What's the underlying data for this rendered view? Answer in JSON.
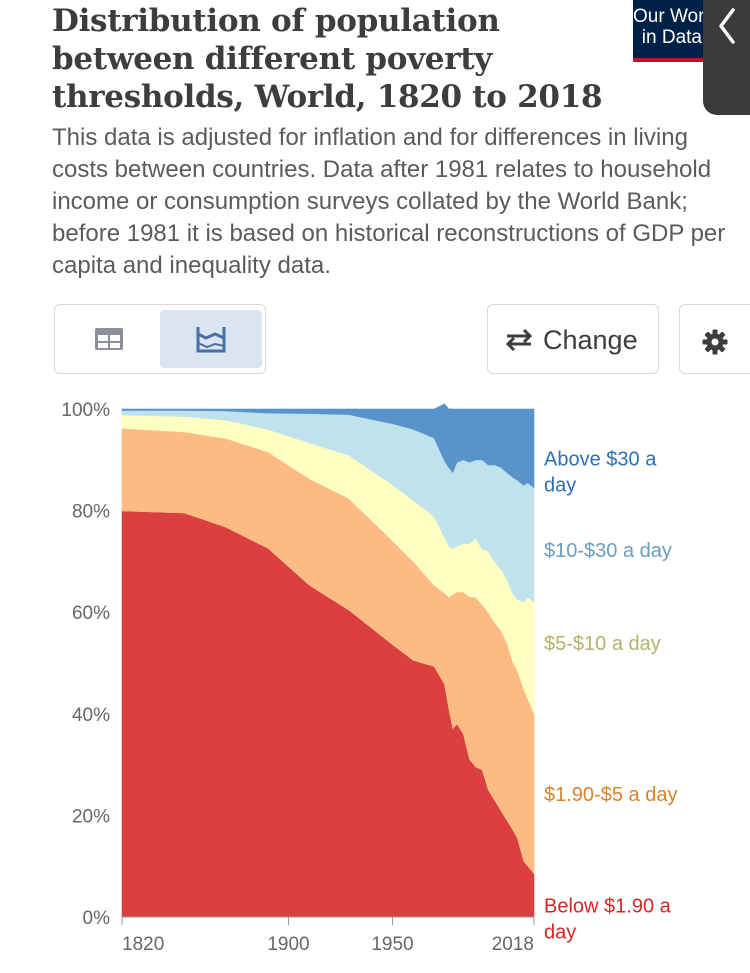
{
  "header": {
    "title_lines": [
      "Distribution of population",
      "between different poverty",
      "thresholds, World, 1820 to 2018"
    ],
    "subtitle": "This data is adjusted for inflation and for differences in living costs between countries. Data after 1981 relates to household income or consumption surveys collated by the World Bank; before 1981 it is based on historical reconstructions of GDP per capita and inequality data.",
    "logo_lines": [
      "Our World",
      "in Data"
    ]
  },
  "controls": {
    "table_icon": "table-icon",
    "chart_icon": "chart-icon",
    "active_view": "chart",
    "change_label": "Change",
    "change_icon": "swap-arrows-icon",
    "settings_icon": "gear-icon"
  },
  "chart_data": {
    "type": "area",
    "stacked": true,
    "percent": true,
    "xlim": [
      1820,
      2018
    ],
    "ylim": [
      0,
      100
    ],
    "x_ticks": [
      "1820",
      "1900",
      "1950",
      "2018"
    ],
    "y_ticks": [
      "0%",
      "20%",
      "40%",
      "60%",
      "80%",
      "100%"
    ],
    "x": [
      1820,
      1850,
      1870,
      1890,
      1910,
      1929,
      1950,
      1960,
      1970,
      1975,
      1977,
      1979,
      1981,
      1984,
      1987,
      1990,
      1993,
      1996,
      1999,
      2002,
      2005,
      2008,
      2010,
      2013,
      2015,
      2018
    ],
    "series": [
      {
        "name": "Below $1.90 a day",
        "color": "#dc3f3f",
        "values": [
          79.9,
          79.5,
          76.7,
          72.6,
          65.3,
          60.4,
          53.6,
          50.5,
          49.3,
          45.8,
          41.0,
          37.0,
          38.0,
          36.0,
          31.0,
          29.5,
          29.0,
          25.0,
          23.0,
          21.0,
          19.0,
          17.0,
          15.5,
          11.0,
          10.0,
          8.5
        ],
        "label_color": "#d62728"
      },
      {
        "name": "$1.90-$5 a day",
        "color": "#fdbb84",
        "values": [
          16.3,
          16.0,
          17.5,
          19.0,
          21.0,
          22.0,
          20.5,
          19.5,
          16.0,
          18.0,
          22.0,
          26.5,
          26.0,
          28.0,
          32.0,
          33.5,
          32.5,
          35.0,
          35.0,
          35.5,
          35.0,
          33.0,
          33.0,
          34.0,
          33.0,
          31.5
        ],
        "label_color": "#d9822b"
      },
      {
        "name": "$5-$10 a day",
        "color": "#ffffc2",
        "values": [
          2.6,
          3.0,
          3.6,
          4.4,
          7.0,
          8.5,
          11.0,
          12.0,
          13.5,
          11.0,
          10.0,
          9.0,
          9.0,
          9.5,
          10.5,
          11.5,
          11.0,
          12.0,
          12.0,
          12.0,
          12.5,
          13.5,
          14.0,
          17.0,
          20.0,
          22.0
        ],
        "label_color": "#b5b06a"
      },
      {
        "name": "$10-$30 a day",
        "color": "#c0e2ed",
        "values": [
          0.9,
          1.2,
          1.8,
          3.2,
          5.8,
          8.0,
          12.0,
          14.0,
          15.5,
          15.0,
          15.5,
          15.0,
          16.5,
          16.5,
          16.0,
          15.5,
          17.5,
          17.0,
          19.0,
          20.0,
          21.0,
          23.0,
          23.5,
          23.0,
          22.5,
          22.5
        ],
        "label_color": "#6a9cbf"
      },
      {
        "name": "Above $30 a day",
        "color": "#5894c9",
        "values": [
          0.3,
          0.3,
          0.4,
          0.8,
          0.9,
          1.1,
          2.9,
          4.0,
          5.7,
          11.2,
          11.5,
          12.5,
          10.5,
          10.0,
          10.5,
          10.0,
          10.0,
          11.0,
          11.0,
          11.5,
          12.5,
          13.5,
          14.0,
          15.0,
          14.5,
          15.5
        ],
        "label_color": "#2f6fb3"
      }
    ]
  }
}
